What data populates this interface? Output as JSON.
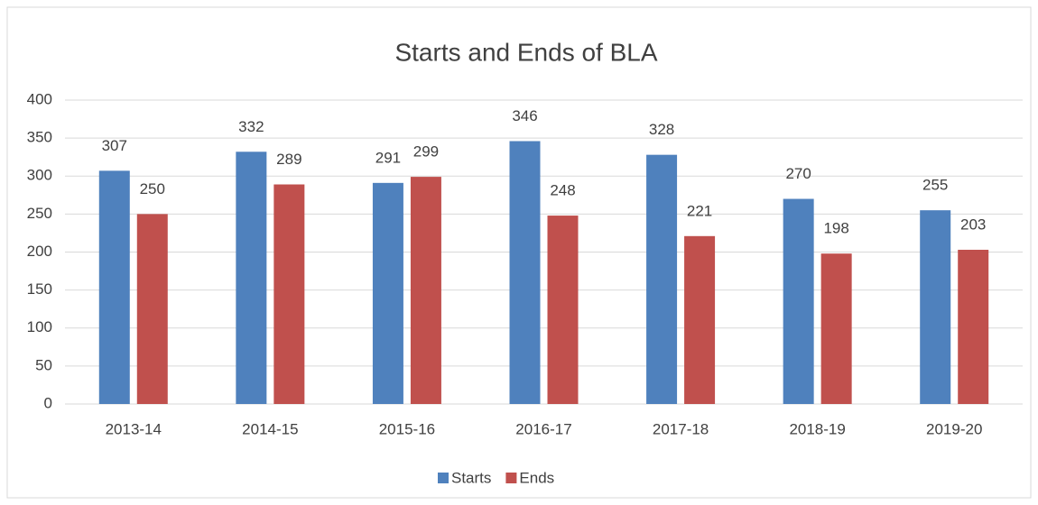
{
  "chart_data": {
    "type": "bar",
    "title": "Starts and Ends of BLA",
    "categories": [
      "2013-14",
      "2014-15",
      "2015-16",
      "2016-17",
      "2017-18",
      "2018-19",
      "2019-20"
    ],
    "series": [
      {
        "name": "Starts",
        "color": "#4f81bd",
        "values": [
          307,
          332,
          291,
          346,
          328,
          270,
          255
        ]
      },
      {
        "name": "Ends",
        "color": "#c0504d",
        "values": [
          250,
          289,
          299,
          248,
          221,
          198,
          203
        ]
      }
    ],
    "ylim": [
      0,
      400
    ],
    "yticks": [
      0,
      50,
      100,
      150,
      200,
      250,
      300,
      350,
      400
    ],
    "grid": true,
    "legend": "bottom"
  }
}
